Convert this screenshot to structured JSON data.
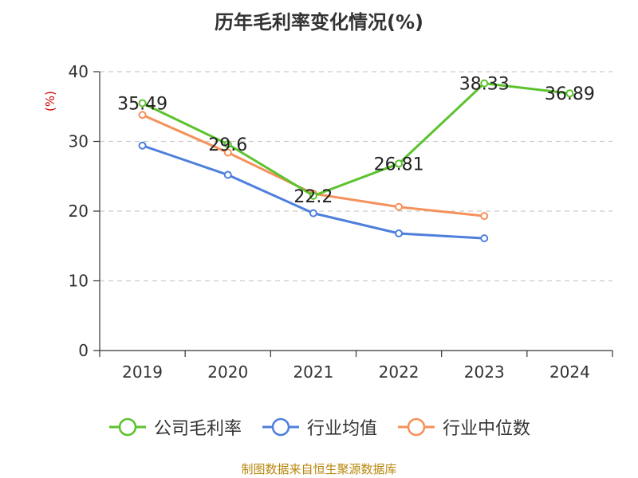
{
  "chart_data": {
    "type": "line",
    "title": "历年毛利率变化情况(%)",
    "ylabel": "(%)",
    "xlabel": "",
    "ylim": [
      0,
      40
    ],
    "yticks": [
      0,
      10,
      20,
      30,
      40
    ],
    "categories": [
      "2019",
      "2020",
      "2021",
      "2022",
      "2023",
      "2024"
    ],
    "grid": true,
    "legend_position": "bottom",
    "series": [
      {
        "name": "公司毛利率",
        "color": "#5cc22e",
        "values": [
          35.49,
          29.6,
          22.2,
          26.81,
          38.33,
          36.89
        ],
        "labels": [
          "35.49",
          "29.6",
          "22.2",
          "26.81",
          "38.33",
          "36.89"
        ]
      },
      {
        "name": "行业均值",
        "color": "#4e7fdc",
        "values": [
          29.4,
          25.2,
          19.7,
          16.8,
          16.1,
          null
        ]
      },
      {
        "name": "行业中位数",
        "color": "#f5915a",
        "values": [
          33.8,
          28.4,
          22.5,
          20.6,
          19.3,
          null
        ]
      }
    ],
    "source": "制图数据来自恒生聚源数据库"
  }
}
